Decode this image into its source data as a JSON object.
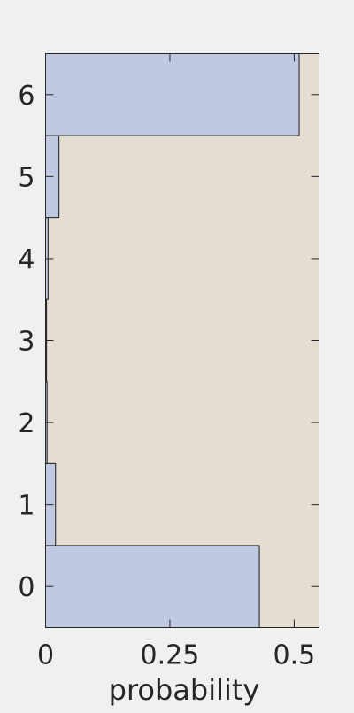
{
  "chart_data": {
    "type": "bar",
    "orientation": "horizontal",
    "categories": [
      "0",
      "1",
      "2",
      "3",
      "4",
      "5",
      "6"
    ],
    "values": [
      0.43,
      0.02,
      0.003,
      0.002,
      0.005,
      0.027,
      0.51
    ],
    "xlabel": "probability",
    "ylabel": "",
    "xlim": [
      0,
      0.55
    ],
    "xticks": [
      0,
      0.25,
      0.5
    ],
    "xtick_labels": [
      "0",
      "0.25",
      "0.5"
    ],
    "ylim": [
      -0.5,
      6.5
    ],
    "grid": false,
    "colors": {
      "figure_background": "#f0f0f0",
      "plot_background": "#e4ddd2",
      "bar_fill": "#bfcae2",
      "bar_stroke": "#1a1a1a",
      "axis": "#262626"
    }
  }
}
